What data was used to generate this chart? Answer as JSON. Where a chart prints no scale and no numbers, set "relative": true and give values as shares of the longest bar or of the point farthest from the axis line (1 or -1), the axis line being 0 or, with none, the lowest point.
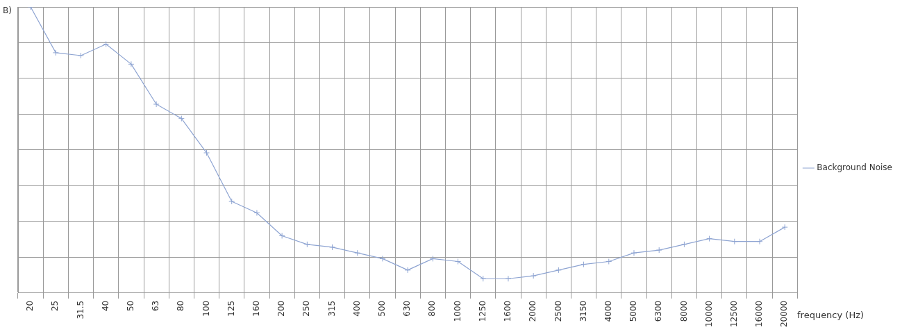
{
  "chart_data": {
    "type": "line",
    "title": "B)",
    "xlabel": "frequency (Hz)",
    "relative": true,
    "categories": [
      "20",
      "25",
      "31.5",
      "40",
      "50",
      "63",
      "80",
      "100",
      "125",
      "160",
      "200",
      "250",
      "315",
      "400",
      "500",
      "630",
      "800",
      "1000",
      "1250",
      "1600",
      "2000",
      "2500",
      "3150",
      "4000",
      "5000",
      "6300",
      "8000",
      "10000",
      "12500",
      "16000",
      "20000"
    ],
    "series": [
      {
        "name": "Background Noise",
        "color": "#8ea4d2",
        "values": [
          1.0,
          0.84,
          0.83,
          0.87,
          0.8,
          0.66,
          0.61,
          0.49,
          0.32,
          0.28,
          0.2,
          0.17,
          0.16,
          0.14,
          0.12,
          0.08,
          0.12,
          0.11,
          0.05,
          0.05,
          0.06,
          0.08,
          0.1,
          0.11,
          0.14,
          0.15,
          0.17,
          0.19,
          0.18,
          0.18,
          0.23
        ]
      }
    ],
    "grid": true,
    "legend": "right",
    "marker": "cross",
    "line_style": "solid"
  }
}
